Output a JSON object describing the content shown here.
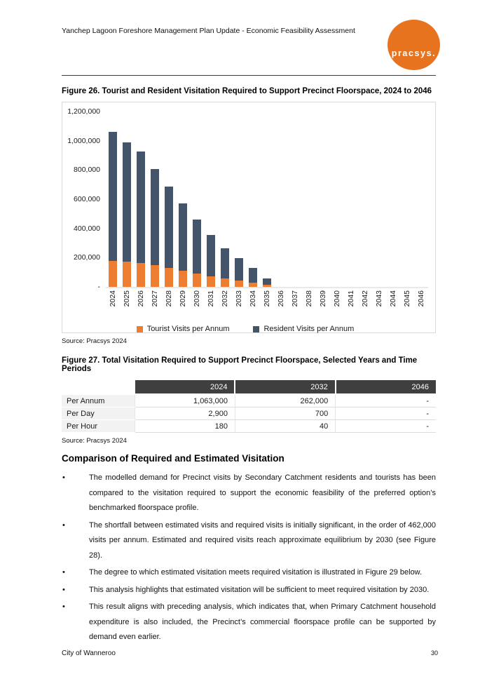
{
  "page": {
    "header_title": "Yanchep Lagoon Foreshore Management Plan Update - Economic Feasibility Assessment",
    "logo_text": "pracsys.",
    "footer_left": "City of Wanneroo",
    "footer_page": "30"
  },
  "figure26": {
    "title": "Figure 26. Tourist and Resident Visitation Required to Support Precinct Floorspace, 2024 to 2046",
    "source": "Source: Pracsys 2024"
  },
  "chart_data": {
    "type": "bar",
    "stacked": true,
    "title": "Figure 26. Tourist and Resident Visitation Required to Support Precinct Floorspace, 2024 to 2046",
    "xlabel": "",
    "ylabel": "",
    "ylim": [
      0,
      1200000
    ],
    "grid": false,
    "legend_position": "bottom",
    "y_ticks": [
      "1,200,000",
      "1,000,000",
      "800,000",
      "600,000",
      "400,000",
      "200,000",
      "-"
    ],
    "categories": [
      "2024",
      "2025",
      "2026",
      "2027",
      "2028",
      "2029",
      "2030",
      "2031",
      "2032",
      "2033",
      "2034",
      "2035",
      "2036",
      "2037",
      "2038",
      "2039",
      "2040",
      "2041",
      "2042",
      "2043",
      "2044",
      "2045",
      "2046"
    ],
    "series": [
      {
        "name": "Tourist Visits per Annum",
        "color": "#ED7D31",
        "values": [
          180000,
          172000,
          165000,
          150000,
          130000,
          110000,
          90000,
          72000,
          56000,
          44000,
          30000,
          15000,
          0,
          0,
          0,
          0,
          0,
          0,
          0,
          0,
          0,
          0,
          0
        ]
      },
      {
        "name": "Resident Visits per Annum",
        "color": "#44546A",
        "values": [
          883000,
          818000,
          760000,
          655000,
          556000,
          463000,
          371000,
          283000,
          206000,
          153000,
          98000,
          45000,
          0,
          0,
          0,
          0,
          0,
          0,
          0,
          0,
          0,
          0,
          0
        ]
      }
    ]
  },
  "figure27": {
    "title": "Figure 27. Total Visitation Required to Support Precinct Floorspace, Selected Years and Time Periods",
    "source": "Source: Pracsys 2024",
    "table": {
      "columns": [
        "2024",
        "2032",
        "2046"
      ],
      "rows": [
        {
          "label": "Per Annum",
          "values": [
            "1,063,000",
            "262,000",
            "-"
          ]
        },
        {
          "label": "Per Day",
          "values": [
            "2,900",
            "700",
            "-"
          ]
        },
        {
          "label": "Per Hour",
          "values": [
            "180",
            "40",
            "-"
          ]
        }
      ]
    }
  },
  "section": {
    "heading": "Comparison of Required and Estimated Visitation",
    "bullets": [
      "The modelled demand for Precinct visits by Secondary Catchment residents and tourists has been compared to the visitation required to support the economic feasibility of the preferred option’s benchmarked floorspace profile.",
      "The shortfall between estimated visits and required visits is initially significant, in the order of 462,000 visits per annum. Estimated and required visits reach approximate equilibrium by 2030 (see Figure 28).",
      "The degree to which estimated visitation meets required visitation is illustrated in Figure 29 below.",
      "This analysis highlights that estimated visitation will be sufficient to meet required visitation by 2030.",
      "This result aligns with preceding analysis, which indicates that, when Primary Catchment household expenditure is also included, the Precinct’s commercial floorspace profile can be supported by demand even earlier."
    ]
  },
  "colors": {
    "logo_orange": "#E8731F",
    "chart_orange": "#ED7D31",
    "chart_blue": "#44546A",
    "table_header_bg": "#3F3F3F"
  }
}
